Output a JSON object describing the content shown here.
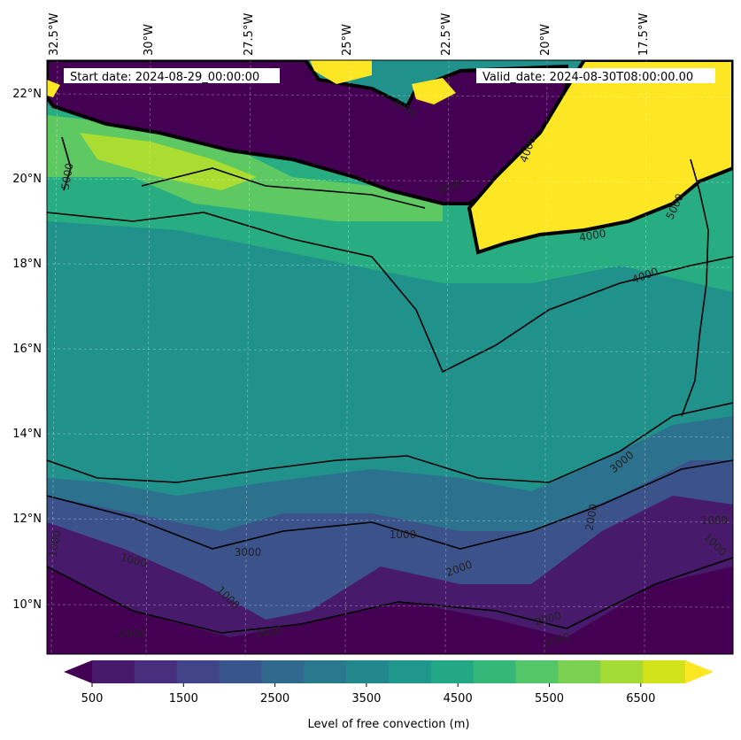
{
  "header": {
    "start_date": "Start date: 2024-08-29_00:00:00",
    "valid_date": "Valid_date: 2024-08-30T08:00:00.00"
  },
  "axes": {
    "lon_labels": [
      "32.5°W",
      "30°W",
      "27.5°W",
      "25°W",
      "22.5°W",
      "20°W",
      "17.5°W"
    ],
    "lat_labels": [
      "22°N",
      "20°N",
      "18°N",
      "16°N",
      "14°N",
      "12°N",
      "10°N"
    ]
  },
  "contour_labels": [
    {
      "text": "5000"
    },
    {
      "text": "3000"
    },
    {
      "text": "4000"
    },
    {
      "text": "2000"
    },
    {
      "text": "4000"
    },
    {
      "text": "4000"
    },
    {
      "text": "5000"
    },
    {
      "text": "3000"
    },
    {
      "text": "1000"
    },
    {
      "text": "1000"
    },
    {
      "text": "1000"
    },
    {
      "text": "1000"
    },
    {
      "text": "2000"
    },
    {
      "text": "2000"
    },
    {
      "text": "2000"
    },
    {
      "text": "2000"
    },
    {
      "text": "1000"
    },
    {
      "text": "1000"
    },
    {
      "text": "1000"
    },
    {
      "text": "3000"
    },
    {
      "text": "2000"
    }
  ],
  "colorbar": {
    "label": "Level of free convection (m)",
    "ticks": [
      "500",
      "1500",
      "2500",
      "3500",
      "4500",
      "5500",
      "6500"
    ],
    "colors": [
      "#440154",
      "#481a6c",
      "#472f7d",
      "#414487",
      "#39568c",
      "#31688e",
      "#2a788e",
      "#23888e",
      "#1f988b",
      "#22a884",
      "#35b779",
      "#54c568",
      "#7ad151",
      "#a5db36",
      "#d2e21b",
      "#fde725"
    ]
  },
  "map_colors": {
    "dark_purple": "#440154",
    "purple": "#481a6c",
    "blue_purple": "#3b528b",
    "teal_blue": "#2c728e",
    "teal": "#21918c",
    "teal_green": "#27ad81",
    "green": "#5ec962",
    "yellow_green": "#aadc32",
    "yellow": "#fde725"
  }
}
